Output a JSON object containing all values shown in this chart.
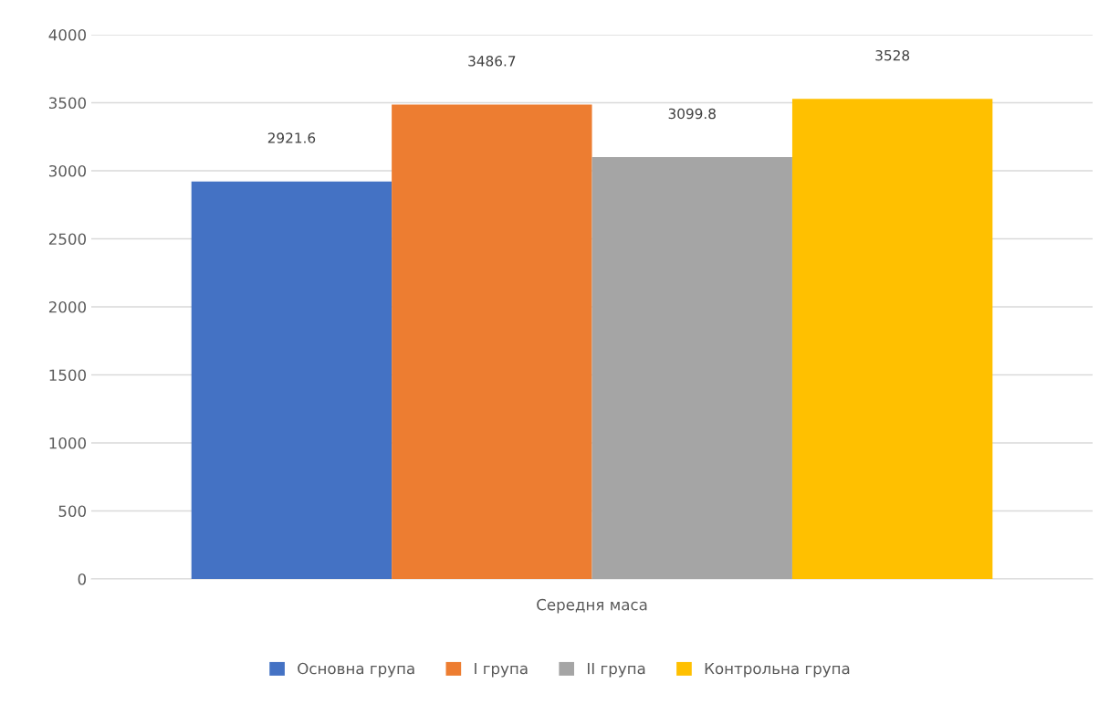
{
  "chart_data": {
    "type": "bar",
    "xlabel": "Середня маса",
    "categories": [
      null
    ],
    "series": [
      {
        "name": "Основна група",
        "color": "#4472c4",
        "values": [
          2921.6
        ]
      },
      {
        "name": "I група",
        "color": "#ed7d31",
        "values": [
          3486.7
        ]
      },
      {
        "name": "II група",
        "color": "#a5a5a5",
        "values": [
          3099.8
        ]
      },
      {
        "name": "Контрольна група",
        "color": "#ffc000",
        "values": [
          3528
        ]
      }
    ],
    "ylim": [
      0,
      4000
    ],
    "yticks": [
      0,
      500,
      1000,
      1500,
      2000,
      2500,
      3000,
      3500,
      4000
    ],
    "grid": "y",
    "legend": "bottom",
    "data_labels": true
  }
}
